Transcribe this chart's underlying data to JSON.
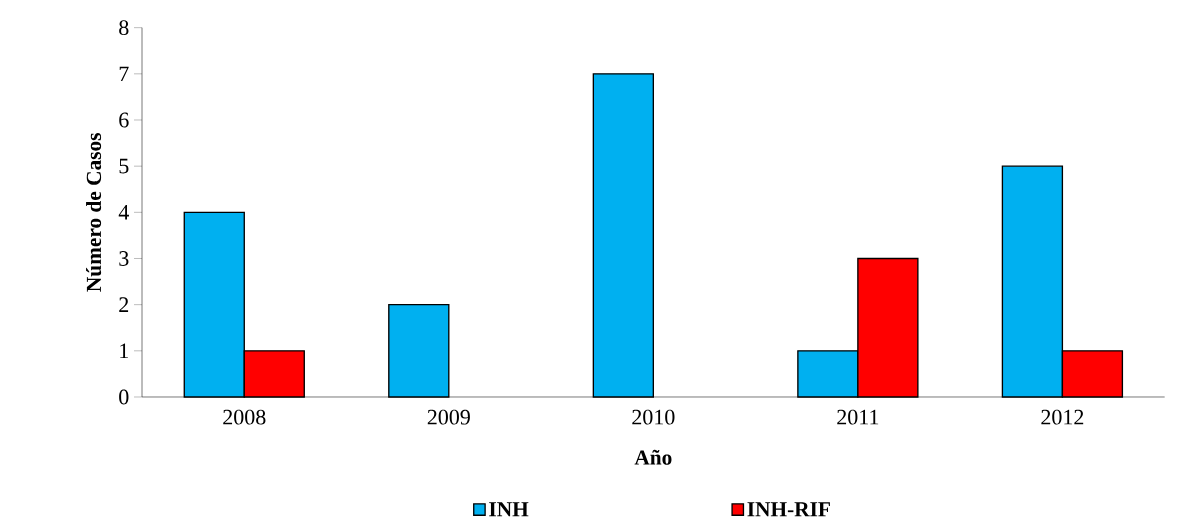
{
  "chart_data": {
    "type": "bar",
    "xlabel": "Año",
    "ylabel": "Número de Casos",
    "categories": [
      "2008",
      "2009",
      "2010",
      "2011",
      "2012"
    ],
    "series": [
      {
        "name": "INH",
        "color": "#00b0f0",
        "values": [
          4,
          2,
          7,
          1,
          5
        ]
      },
      {
        "name": "INH-RIF",
        "color": "#ff0000",
        "values": [
          1,
          0,
          0,
          3,
          1
        ]
      }
    ],
    "ylim": [
      0,
      8
    ],
    "yticks": [
      0,
      1,
      2,
      3,
      4,
      5,
      6,
      7,
      8
    ],
    "grid": false,
    "legend": "bottom"
  }
}
